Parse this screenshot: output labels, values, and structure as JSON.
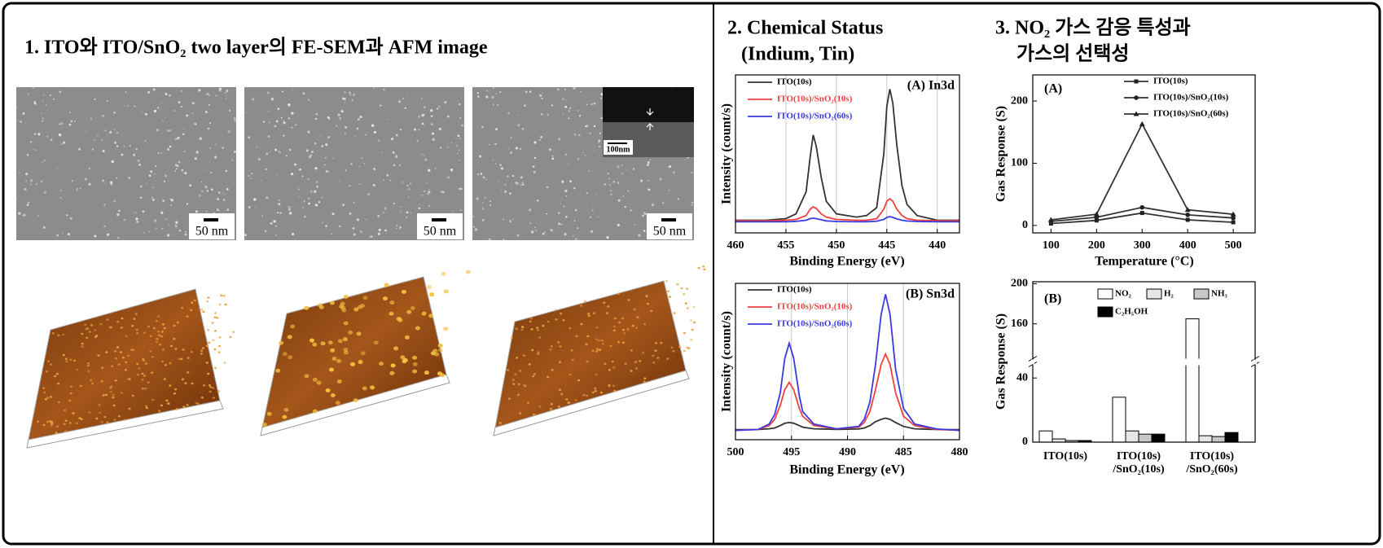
{
  "panel1": {
    "title": "1. ITO와 ITO/SnO₂ two layer의  FE-SEM과 AFM image",
    "sem_scale_labels": [
      "50 nm",
      "50 nm",
      "50 nm"
    ],
    "inset_scale_label": "100nm"
  },
  "panel2": {
    "title_lines": [
      "2. Chemical  Status",
      "(Indium, Tin)"
    ]
  },
  "panel3": {
    "title_lines": [
      "3. NO₂ 가스 감응 특성과",
      "가스의 선택성"
    ]
  },
  "chart_data": [
    {
      "type": "line",
      "annotation": "(A) In3d",
      "x_label": "Binding Energy (eV)",
      "y_label": "Intensity (count/s)",
      "x": [
        460,
        457,
        455,
        454,
        453,
        452.6,
        452.3,
        452,
        451.5,
        451,
        450,
        448,
        447,
        446,
        445.3,
        445,
        444.7,
        444.4,
        444,
        443.5,
        443,
        442,
        440,
        437.8
      ],
      "xlim": [
        460,
        437.8
      ],
      "xticks": [
        460,
        455,
        450,
        445,
        440
      ],
      "ylim": [
        0,
        100
      ],
      "grid": "x",
      "legend": "upper left",
      "series": [
        {
          "name": "ITO(10s)",
          "color": "#333333",
          "values": [
            8,
            8,
            9,
            12,
            26,
            48,
            62,
            55,
            35,
            20,
            12,
            10,
            11,
            16,
            50,
            80,
            91,
            82,
            55,
            30,
            18,
            11,
            8,
            8
          ]
        },
        {
          "name": "ITO(10s)/SnO₂(10s)",
          "color": "#f04040",
          "values": [
            7.7,
            7.7,
            8,
            8.5,
            11,
            15,
            16.5,
            15.5,
            12,
            10,
            8.5,
            8,
            8,
            9,
            15,
            20,
            21.6,
            20,
            15,
            11,
            9,
            8,
            7.7,
            7.7
          ]
        },
        {
          "name": "ITO(10s)/SnO₂(60s)",
          "color": "#3a3ae0",
          "values": [
            7,
            7,
            7,
            7.3,
            8,
            9,
            9.3,
            9,
            8.3,
            7.6,
            7.2,
            7,
            7,
            7.4,
            8.5,
            9.8,
            10.3,
            9.8,
            8.8,
            8,
            7.5,
            7.2,
            7,
            7
          ]
        }
      ]
    },
    {
      "type": "line",
      "annotation": "(B) Sn3d",
      "x_label": "Binding Energy (eV)",
      "y_label": "Intensity (count/s)",
      "x": [
        500,
        498,
        497,
        496.5,
        496,
        495.6,
        495.2,
        494.8,
        494.3,
        494,
        493,
        491,
        489,
        488.5,
        488,
        487.5,
        487,
        486.6,
        486.2,
        485.7,
        485,
        484,
        482,
        480
      ],
      "xlim": [
        500,
        480
      ],
      "xticks": [
        500,
        495,
        490,
        485,
        480
      ],
      "ylim": [
        0,
        100
      ],
      "grid": "x",
      "legend": "upper left",
      "series": [
        {
          "name": "ITO(10s)",
          "color": "#333333",
          "values": [
            6.4,
            6.5,
            7,
            7.5,
            9,
            10.5,
            11,
            10.5,
            9,
            8,
            7,
            6.6,
            6.8,
            7.5,
            9,
            11.5,
            13,
            13.8,
            13,
            11,
            8.5,
            7,
            6.5,
            6.4
          ]
        },
        {
          "name": "ITO(10s)/SnO₂(10s)",
          "color": "#f04040",
          "values": [
            6,
            6.5,
            9,
            13,
            22,
            32,
            36.7,
            32,
            20,
            15,
            9,
            7,
            8,
            11,
            18,
            32,
            48,
            54.8,
            48,
            30,
            15,
            9,
            6.5,
            6
          ]
        },
        {
          "name": "ITO(10s)/SnO₂(60s)",
          "color": "#3a3ae0",
          "values": [
            6,
            6.5,
            10,
            16,
            30,
            52,
            61.7,
            52,
            28,
            18,
            10,
            7,
            8.5,
            13,
            24,
            48,
            80,
            93,
            80,
            45,
            20,
            10,
            6.8,
            6
          ]
        }
      ]
    },
    {
      "type": "line",
      "annotation": "(A)",
      "x_label": "Temperature (°C)",
      "y_label": "Gas Response (S)",
      "x": [
        100,
        200,
        300,
        400,
        500
      ],
      "xlim": [
        60,
        548
      ],
      "xticks": [
        100,
        200,
        300,
        400,
        500
      ],
      "ylim": [
        -12,
        242
      ],
      "yticks": [
        0,
        100,
        200
      ],
      "legend": "upper right",
      "series": [
        {
          "name": "ITO(10s)",
          "color": "#333333",
          "marker": "square",
          "values": [
            3,
            8,
            20,
            9,
            5
          ]
        },
        {
          "name": "ITO(10s)/SnO₂(10s)",
          "color": "#333333",
          "marker": "circle",
          "values": [
            6.5,
            13,
            29,
            17,
            12
          ]
        },
        {
          "name": "ITO(10s)/SnO₂(60s)",
          "color": "#333333",
          "marker": "triangle",
          "values": [
            9,
            18,
            163,
            25,
            18
          ]
        }
      ]
    },
    {
      "type": "bar",
      "annotation": "(B)",
      "y_label": "Gas Response (S)",
      "categories": [
        "ITO(10s)",
        "ITO(10s)\n/SnO₂(10s)",
        "ITO(10s)\n/SnO₂(60s)"
      ],
      "ylim": [
        0,
        202
      ],
      "axis_break": [
        50,
        122
      ],
      "yticks": [
        0,
        40,
        160,
        200
      ],
      "legend": "upper right",
      "series": [
        {
          "name": "NO₂",
          "color": "#ffffff",
          "values": [
            7,
            28,
            165
          ]
        },
        {
          "name": "H₂",
          "color": "#e6e6e6",
          "values": [
            2,
            7,
            4
          ]
        },
        {
          "name": "NH₃",
          "color": "#c8c8c8",
          "values": [
            1,
            5,
            3.5
          ]
        },
        {
          "name": "C₂H₅OH",
          "color": "#000000",
          "values": [
            1,
            5,
            6
          ]
        }
      ]
    }
  ]
}
